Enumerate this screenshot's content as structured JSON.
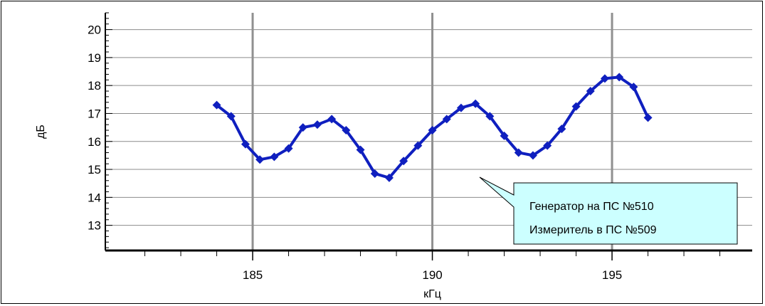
{
  "chart_data": {
    "type": "line",
    "xlabel": "кГц",
    "ylabel": "дБ",
    "xlim": [
      180.9,
      198.9
    ],
    "ylim": [
      12.1,
      20.6
    ],
    "x_ticks": [
      185,
      190,
      195
    ],
    "x_tick_labels": [
      "185",
      "190",
      "195"
    ],
    "x_minor_ticks": [
      182,
      183,
      184,
      186,
      187,
      188,
      189,
      191,
      192,
      193,
      194,
      196,
      197,
      198
    ],
    "y_ticks": [
      13,
      14,
      15,
      16,
      17,
      18,
      19,
      20
    ],
    "y_tick_labels": [
      "13",
      "14",
      "15",
      "16",
      "17",
      "18",
      "19",
      "20"
    ],
    "grid": true,
    "series_color": "#0f1fbf",
    "series": [
      {
        "x": [
          184.0,
          184.4,
          184.8,
          185.2,
          185.6,
          186.0,
          186.4,
          186.8,
          187.2,
          187.6,
          188.0,
          188.4,
          188.8,
          189.2,
          189.6,
          190.0,
          190.4,
          190.8,
          191.2,
          191.6,
          192.0,
          192.4,
          192.8,
          193.2,
          193.6,
          194.0,
          194.4,
          194.8,
          195.2,
          195.6,
          196.0
        ],
        "values": [
          17.3,
          16.9,
          15.9,
          15.35,
          15.45,
          15.75,
          16.5,
          16.6,
          16.8,
          16.4,
          15.7,
          14.85,
          14.7,
          15.3,
          15.85,
          16.4,
          16.8,
          17.2,
          17.35,
          16.9,
          16.2,
          15.6,
          15.5,
          15.85,
          16.45,
          17.25,
          17.8,
          18.25,
          18.3,
          17.95,
          16.85
        ]
      }
    ],
    "annotation": {
      "lines": [
        "Генератор на ПС №510",
        "Измеритель в ПС №509"
      ],
      "fill": "#ccffff"
    }
  }
}
